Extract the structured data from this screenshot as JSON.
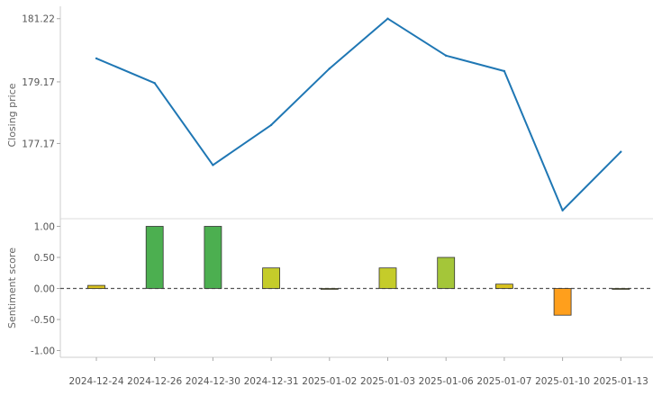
{
  "chart_data": [
    {
      "type": "line",
      "x": [
        "2024-12-24",
        "2024-12-26",
        "2024-12-30",
        "2024-12-31",
        "2025-01-02",
        "2025-01-03",
        "2025-01-06",
        "2025-01-07",
        "2025-01-10",
        "2025-01-13"
      ],
      "series": [
        {
          "values": [
            179.93,
            179.13,
            176.47,
            177.77,
            179.6,
            181.22,
            180.02,
            179.52,
            175.0,
            176.9
          ]
        }
      ],
      "ylabel": "Closing price",
      "yticks": [
        "181.22",
        "179.17",
        "177.17"
      ],
      "ytick_values": [
        181.22,
        179.17,
        177.17
      ],
      "ylim": [
        174.73,
        181.3
      ],
      "grid": false,
      "color": "#1f77b4"
    },
    {
      "type": "bar",
      "categories": [
        "2024-12-24",
        "2024-12-26",
        "2024-12-30",
        "2024-12-31",
        "2025-01-02",
        "2025-01-03",
        "2025-01-06",
        "2025-01-07",
        "2025-01-10",
        "2025-01-13"
      ],
      "values": [
        0.05,
        1.0,
        1.0,
        0.33,
        0.0,
        0.33,
        0.5,
        0.07,
        -0.43,
        0.0
      ],
      "colors": [
        "#d9c21e",
        "#4caf50",
        "#4caf50",
        "#c5cc2a",
        "#c5cc2a",
        "#c5cc2a",
        "#a4c639",
        "#d9c21e",
        "#ff9f1c",
        "#c5cc2a"
      ],
      "ylabel": "Sentiment score",
      "yticks": [
        "1.00",
        "0.50",
        "0.00",
        "-0.50",
        "-1.00"
      ],
      "ytick_values": [
        1.0,
        0.5,
        0.0,
        -0.5,
        -1.0
      ],
      "ylim": [
        -1.1,
        1.1
      ],
      "zero_line": "dashed",
      "grid": false
    }
  ]
}
